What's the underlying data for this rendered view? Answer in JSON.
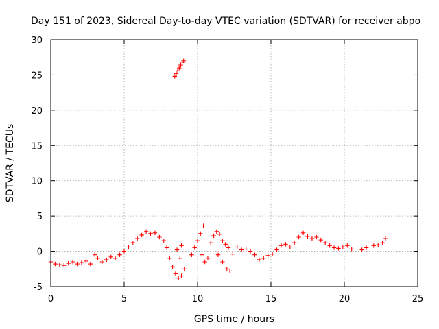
{
  "chart_data": {
    "type": "scatter",
    "title": "Day 151 of 2023, Sidereal Day-to-day VTEC variation (SDTVAR) for receiver abpo",
    "xlabel": "GPS time / hours",
    "ylabel": "SDTVAR / TECUs",
    "xlim": [
      0,
      25
    ],
    "ylim": [
      -5,
      30
    ],
    "xticks": [
      "0",
      "5",
      "10",
      "15",
      "20",
      "25"
    ],
    "yticks": [
      "-5",
      "0",
      "5",
      "10",
      "15",
      "20",
      "25",
      "30"
    ],
    "grid": true,
    "marker": "+",
    "color": "#ff0000",
    "series": [
      {
        "name": "SDTVAR",
        "points": [
          [
            0.0,
            -1.5
          ],
          [
            0.3,
            -1.8
          ],
          [
            0.6,
            -1.9
          ],
          [
            0.9,
            -2.0
          ],
          [
            1.2,
            -1.7
          ],
          [
            1.5,
            -1.5
          ],
          [
            1.8,
            -1.8
          ],
          [
            2.1,
            -1.6
          ],
          [
            2.4,
            -1.4
          ],
          [
            2.7,
            -1.8
          ],
          [
            3.0,
            -0.5
          ],
          [
            3.2,
            -1.0
          ],
          [
            3.5,
            -1.5
          ],
          [
            3.8,
            -1.2
          ],
          [
            4.1,
            -0.8
          ],
          [
            4.4,
            -1.0
          ],
          [
            4.7,
            -0.5
          ],
          [
            5.0,
            0.0
          ],
          [
            5.3,
            0.6
          ],
          [
            5.6,
            1.2
          ],
          [
            5.9,
            1.8
          ],
          [
            6.2,
            2.3
          ],
          [
            6.5,
            2.8
          ],
          [
            6.8,
            2.5
          ],
          [
            7.1,
            2.6
          ],
          [
            7.4,
            2.0
          ],
          [
            7.7,
            1.5
          ],
          [
            7.9,
            0.5
          ],
          [
            8.1,
            -1.0
          ],
          [
            8.3,
            -2.2
          ],
          [
            8.5,
            -3.2
          ],
          [
            8.7,
            -3.8
          ],
          [
            8.9,
            -3.5
          ],
          [
            9.1,
            -2.5
          ],
          [
            8.8,
            -1.0
          ],
          [
            8.6,
            0.2
          ],
          [
            8.9,
            0.8
          ],
          [
            8.45,
            24.8
          ],
          [
            8.55,
            25.2
          ],
          [
            8.65,
            25.6
          ],
          [
            8.75,
            26.0
          ],
          [
            8.85,
            26.4
          ],
          [
            8.95,
            26.8
          ],
          [
            9.05,
            27.0
          ],
          [
            9.6,
            -0.5
          ],
          [
            9.8,
            0.5
          ],
          [
            10.0,
            1.5
          ],
          [
            10.2,
            2.5
          ],
          [
            10.4,
            3.6
          ],
          [
            10.3,
            -0.5
          ],
          [
            10.5,
            -1.5
          ],
          [
            10.7,
            -1.0
          ],
          [
            10.9,
            1.2
          ],
          [
            11.1,
            2.2
          ],
          [
            11.3,
            2.8
          ],
          [
            11.5,
            2.4
          ],
          [
            11.7,
            1.5
          ],
          [
            11.9,
            1.0
          ],
          [
            12.1,
            0.5
          ],
          [
            11.4,
            -0.5
          ],
          [
            11.7,
            -1.5
          ],
          [
            12.0,
            -2.5
          ],
          [
            12.2,
            -2.8
          ],
          [
            12.4,
            -0.4
          ],
          [
            12.7,
            0.6
          ],
          [
            13.0,
            0.2
          ],
          [
            13.3,
            0.3
          ],
          [
            13.6,
            0.0
          ],
          [
            13.9,
            -0.5
          ],
          [
            14.2,
            -1.2
          ],
          [
            14.5,
            -1.0
          ],
          [
            14.8,
            -0.6
          ],
          [
            15.1,
            -0.4
          ],
          [
            15.4,
            0.2
          ],
          [
            15.7,
            0.8
          ],
          [
            16.0,
            1.0
          ],
          [
            16.3,
            0.6
          ],
          [
            16.6,
            1.2
          ],
          [
            16.9,
            2.0
          ],
          [
            17.2,
            2.6
          ],
          [
            17.5,
            2.1
          ],
          [
            17.8,
            1.8
          ],
          [
            18.1,
            2.0
          ],
          [
            18.4,
            1.6
          ],
          [
            18.7,
            1.2
          ],
          [
            19.0,
            0.8
          ],
          [
            19.3,
            0.5
          ],
          [
            19.6,
            0.4
          ],
          [
            19.9,
            0.6
          ],
          [
            20.2,
            0.8
          ],
          [
            20.5,
            0.3
          ],
          [
            21.2,
            0.2
          ],
          [
            21.5,
            0.5
          ],
          [
            22.0,
            0.8
          ],
          [
            22.3,
            0.9
          ],
          [
            22.6,
            1.2
          ],
          [
            22.8,
            1.8
          ]
        ]
      }
    ]
  }
}
